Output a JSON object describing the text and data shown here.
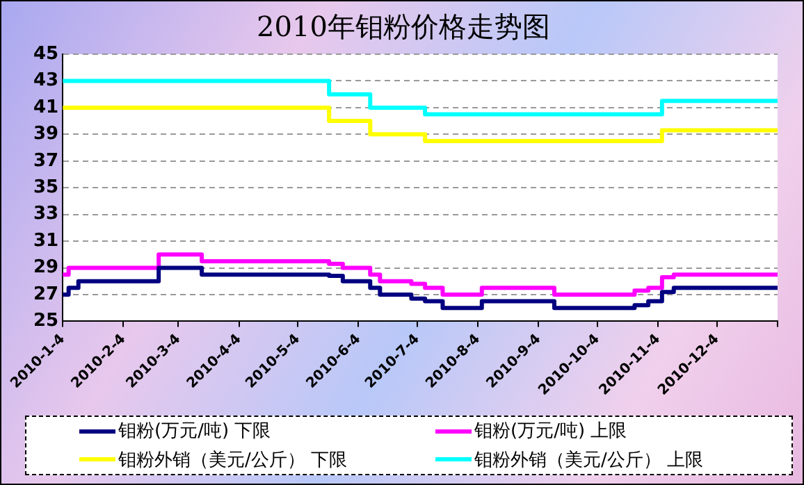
{
  "chart_data": {
    "type": "step",
    "title": "2010年钼粉价格走势图",
    "xlim": [
      "2010-01-04",
      "2011-01-04"
    ],
    "xticks": [
      {
        "value": "2010-01-04",
        "label": "2010-1-4"
      },
      {
        "value": "2010-02-04",
        "label": "2010-2-4"
      },
      {
        "value": "2010-03-04",
        "label": "2010-3-4"
      },
      {
        "value": "2010-04-04",
        "label": "2010-4-4"
      },
      {
        "value": "2010-05-04",
        "label": "2010-5-4"
      },
      {
        "value": "2010-06-04",
        "label": "2010-6-4"
      },
      {
        "value": "2010-07-04",
        "label": "2010-7-4"
      },
      {
        "value": "2010-08-04",
        "label": "2010-8-4"
      },
      {
        "value": "2010-09-04",
        "label": "2010-9-4"
      },
      {
        "value": "2010-10-04",
        "label": "2010-10-4"
      },
      {
        "value": "2010-11-04",
        "label": "2010-11-4"
      },
      {
        "value": "2010-12-04",
        "label": "2010-12-4"
      },
      {
        "value": "2011-01-04",
        "label": null
      }
    ],
    "ylim": [
      25,
      45
    ],
    "yticks": [
      25,
      27,
      29,
      31,
      33,
      35,
      37,
      39,
      41,
      43,
      45
    ],
    "grid": "y",
    "legend": "bottom",
    "marker": "none",
    "line_style": "solid",
    "series": [
      {
        "name": "钼粉(万元/吨) 下限",
        "color": "#000080",
        "x": [
          "2010-01-04",
          "2010-01-07",
          "2010-01-12",
          "2010-02-22",
          "2010-03-16",
          "2010-05-20",
          "2010-05-27",
          "2010-06-10",
          "2010-06-15",
          "2010-07-01",
          "2010-07-08",
          "2010-07-17",
          "2010-08-06",
          "2010-09-12",
          "2010-10-23",
          "2010-10-30",
          "2010-11-06",
          "2010-11-12",
          "2011-01-04"
        ],
        "values": [
          27,
          27.5,
          28,
          29,
          28.5,
          28.4,
          28,
          27.5,
          27,
          26.7,
          26.5,
          26,
          26.5,
          26,
          26.2,
          26.5,
          27.2,
          27.5,
          27.5
        ]
      },
      {
        "name": "钼粉(万元/吨) 上限",
        "color": "#ff00ff",
        "x": [
          "2010-01-04",
          "2010-01-07",
          "2010-02-22",
          "2010-03-16",
          "2010-05-20",
          "2010-05-27",
          "2010-06-10",
          "2010-06-15",
          "2010-07-01",
          "2010-07-08",
          "2010-07-17",
          "2010-08-06",
          "2010-09-12",
          "2010-10-23",
          "2010-10-30",
          "2010-11-06",
          "2010-11-12",
          "2011-01-04"
        ],
        "values": [
          28.5,
          29,
          30,
          29.5,
          29.3,
          29,
          28.5,
          28,
          27.8,
          27.5,
          27,
          27.5,
          27,
          27.3,
          27.5,
          28.3,
          28.5,
          28.5
        ]
      },
      {
        "name": "钼粉外销（美元/公斤） 下限",
        "color": "#ffff00",
        "x": [
          "2010-01-04",
          "2010-05-20",
          "2010-06-10",
          "2010-07-08",
          "2010-11-06",
          "2011-01-04"
        ],
        "values": [
          41,
          40,
          39,
          38.5,
          39.3,
          39.3
        ]
      },
      {
        "name": "钼粉外销（美元/公斤） 上限",
        "color": "#00ffff",
        "x": [
          "2010-01-04",
          "2010-05-20",
          "2010-06-10",
          "2010-07-08",
          "2010-11-06",
          "2011-01-04"
        ],
        "values": [
          43,
          42,
          41,
          40.5,
          41.5,
          41.5
        ]
      }
    ]
  }
}
